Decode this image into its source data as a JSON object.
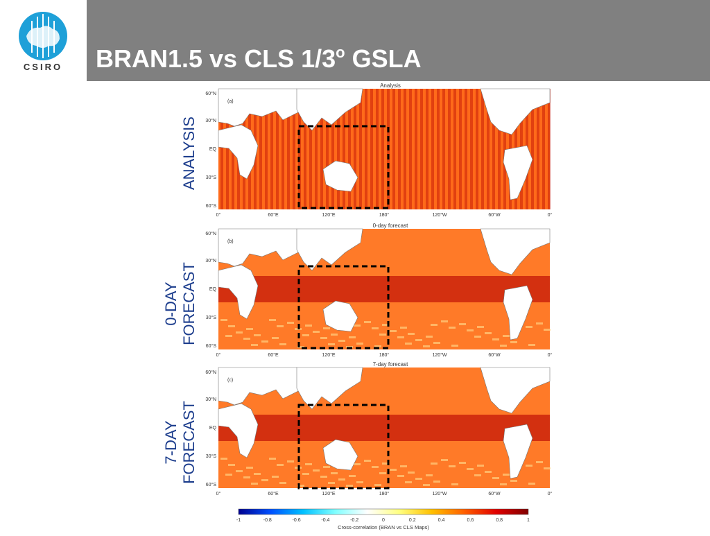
{
  "header": {
    "title_main": "BRAN1.5 vs CLS 1/3",
    "title_sup": "o",
    "title_end": " GSLA",
    "logo_text": "CSIRO"
  },
  "panels": [
    {
      "row_label_lines": [
        "ANALYSIS"
      ],
      "subtitle": "Analysis",
      "panel_letter": "(a)"
    },
    {
      "row_label_lines": [
        "0-DAY",
        "FORECAST"
      ],
      "subtitle": "0-day forecast",
      "panel_letter": "(b)"
    },
    {
      "row_label_lines": [
        "7-DAY",
        "FORECAST"
      ],
      "subtitle": "7-day forecast",
      "panel_letter": "(c)"
    }
  ],
  "map_axes": {
    "lat_ticks": [
      "60°N",
      "30°N",
      "EQ",
      "30°S",
      "60°S"
    ],
    "lon_ticks": [
      "0°",
      "60°E",
      "120°E",
      "180°",
      "120°W",
      "60°W",
      "0°"
    ]
  },
  "colorbar": {
    "ticks": [
      "-1",
      "-0.8",
      "-0.6",
      "-0.4",
      "-0.2",
      "0",
      "0.2",
      "0.4",
      "0.6",
      "0.8",
      "1"
    ],
    "label": "Cross-correlation (BRAN vs CLS Maps)",
    "colors": [
      "#00008f",
      "#0050ff",
      "#00c0ff",
      "#80ffff",
      "#ffffff",
      "#ffff80",
      "#ffc000",
      "#ff6000",
      "#e00000",
      "#800000"
    ]
  },
  "colors": {
    "header_bg": "#808080",
    "row_label": "#1b3c8c",
    "ocean_high": "#c81e0a",
    "ocean_mid": "#ff6a1a",
    "land": "#ffffff"
  }
}
